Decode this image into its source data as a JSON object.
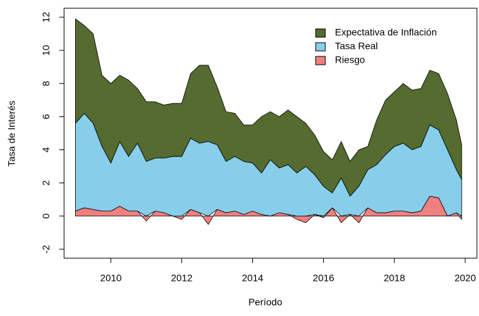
{
  "chart_data": {
    "type": "stacked_area",
    "x_label": "Período",
    "y_label": "Tasa de Interés",
    "x": [
      2009.0,
      2009.25,
      2009.5,
      2009.75,
      2010.0,
      2010.25,
      2010.5,
      2010.75,
      2011.0,
      2011.25,
      2011.5,
      2011.75,
      2012.0,
      2012.25,
      2012.5,
      2012.75,
      2013.0,
      2013.25,
      2013.5,
      2013.75,
      2014.0,
      2014.25,
      2014.5,
      2014.75,
      2015.0,
      2015.25,
      2015.5,
      2015.75,
      2016.0,
      2016.25,
      2016.5,
      2016.75,
      2017.0,
      2017.25,
      2017.5,
      2017.75,
      2018.0,
      2018.25,
      2018.5,
      2018.75,
      2019.0,
      2019.25,
      2019.5,
      2019.75,
      2019.9
    ],
    "series": [
      {
        "name": "Riesgo",
        "color": "#f08080",
        "values": [
          0.3,
          0.5,
          0.4,
          0.3,
          0.3,
          0.6,
          0.3,
          0.3,
          -0.3,
          0.3,
          0.2,
          0,
          -0.2,
          0.4,
          0.2,
          -0.5,
          0.4,
          0.2,
          0.3,
          0.1,
          0.3,
          0.1,
          0,
          0.2,
          0.1,
          -0.2,
          -0.4,
          0.1,
          -0.1,
          0.5,
          -0.4,
          0.1,
          -0.4,
          0.5,
          0.2,
          0.2,
          0.3,
          0.3,
          0.2,
          0.3,
          1.2,
          1.1,
          0,
          0.2,
          -0.2
        ]
      },
      {
        "name": "Tasa Real",
        "color": "#87ceeb",
        "values": [
          5.3,
          5.7,
          5.2,
          3.9,
          2.9,
          3.9,
          3.3,
          4.1,
          3.3,
          3.2,
          3.3,
          3.6,
          3.6,
          4.3,
          4.2,
          4.5,
          3.9,
          3.1,
          3.3,
          3.2,
          2.9,
          2.5,
          3.4,
          2.7,
          3.0,
          2.6,
          3.0,
          2.4,
          1.8,
          0.9,
          2.3,
          1.1,
          1.8,
          2.3,
          2.9,
          3.5,
          3.9,
          4.1,
          3.8,
          3.9,
          4.3,
          4.1,
          4.0,
          2.6,
          2.2
        ]
      },
      {
        "name": "Expectativa de Inflación",
        "color": "#556b2f",
        "values": [
          6.3,
          5.3,
          5.4,
          4.3,
          4.8,
          4.0,
          4.6,
          3.3,
          3.6,
          3.4,
          3.2,
          3.2,
          3.2,
          3.9,
          4.7,
          4.6,
          3.5,
          3.0,
          2.6,
          2.2,
          2.3,
          3.4,
          2.9,
          3.1,
          3.3,
          3.4,
          2.6,
          2.4,
          2.1,
          2.0,
          2.2,
          2.1,
          2.2,
          1.4,
          2.7,
          3.3,
          3.3,
          3.6,
          3.6,
          3.5,
          3.3,
          3.4,
          3.4,
          3.0,
          2.1
        ]
      }
    ],
    "xlim": [
      2008.68,
      2020.33
    ],
    "xticks": [
      2010,
      2012,
      2014,
      2016,
      2018,
      2020
    ],
    "ylim": [
      -2.54,
      12.54
    ],
    "yticks": [
      -2,
      0,
      2,
      4,
      6,
      8,
      10,
      12
    ],
    "legend": "top-right"
  }
}
